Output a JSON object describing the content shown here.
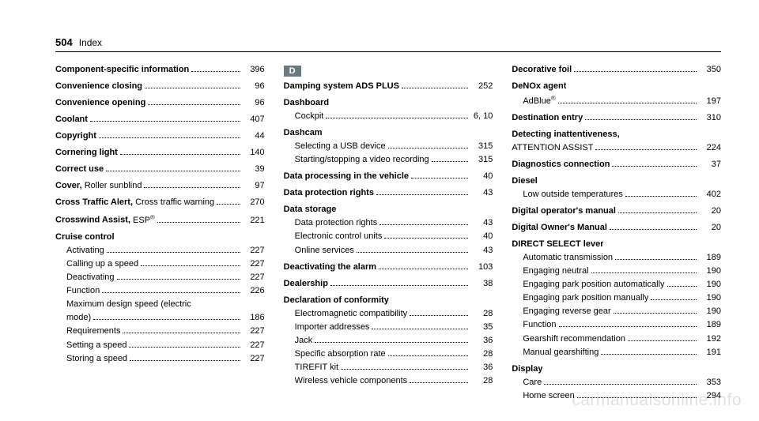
{
  "header": {
    "page_number": "504",
    "section": "Index"
  },
  "watermark": "carmanualsonline.info",
  "columns": {
    "left": [
      {
        "bold": "Component-specific information",
        "tail": "",
        "pg": "396"
      },
      {
        "spacer": true
      },
      {
        "bold": "Convenience closing",
        "tail": "",
        "pg": "96"
      },
      {
        "spacer": true
      },
      {
        "bold": "Convenience opening",
        "tail": "",
        "pg": "96"
      },
      {
        "spacer": true
      },
      {
        "bold": "Coolant",
        "tail": "",
        "pg": "407"
      },
      {
        "spacer": true
      },
      {
        "bold": "Copyright",
        "tail": "",
        "pg": "44"
      },
      {
        "spacer": true
      },
      {
        "bold": "Cornering light",
        "tail": "",
        "pg": "140"
      },
      {
        "spacer": true
      },
      {
        "bold": "Correct use",
        "tail": "",
        "pg": "39"
      },
      {
        "spacer": true
      },
      {
        "bold": "Cover,",
        "tail": " Roller sunblind",
        "pg": "97"
      },
      {
        "spacer": true
      },
      {
        "bold": "Cross Traffic Alert,",
        "tail": " Cross traffic warning",
        "pg": "270"
      },
      {
        "spacer": true
      },
      {
        "bold": "Crosswind Assist,",
        "tail": " ESP®",
        "pg": "221"
      },
      {
        "spacer": true
      },
      {
        "bold": "Cruise control",
        "heading": true
      },
      {
        "sub": true,
        "tail": "Activating",
        "pg": "227"
      },
      {
        "sub": true,
        "tail": "Calling up a speed",
        "pg": "227"
      },
      {
        "sub": true,
        "tail": "Deactivating",
        "pg": "227"
      },
      {
        "sub": true,
        "tail": "Function",
        "pg": "226"
      },
      {
        "sub": true,
        "tail": "Maximum design speed (electric",
        "cont": true
      },
      {
        "sub": true,
        "tail": "mode)",
        "pg": "186"
      },
      {
        "sub": true,
        "tail": "Requirements",
        "pg": "227"
      },
      {
        "sub": true,
        "tail": "Setting a speed",
        "pg": "227"
      },
      {
        "sub": true,
        "tail": "Storing a speed",
        "pg": "227"
      }
    ],
    "middle": [
      {
        "badge": "D"
      },
      {
        "bold": "Damping system ADS PLUS",
        "tail": "",
        "pg": "252"
      },
      {
        "spacer": true
      },
      {
        "bold": "Dashboard",
        "heading": true
      },
      {
        "sub": true,
        "tail": "Cockpit",
        "pg": "6, 10"
      },
      {
        "spacer": true
      },
      {
        "bold": "Dashcam",
        "heading": true
      },
      {
        "sub": true,
        "tail": "Selecting a USB device",
        "pg": "315"
      },
      {
        "sub": true,
        "tail": "Starting/stopping a video recording",
        "pg": "315"
      },
      {
        "spacer": true
      },
      {
        "bold": "Data processing in the vehicle",
        "tail": "",
        "pg": "40"
      },
      {
        "spacer": true
      },
      {
        "bold": "Data protection rights",
        "tail": "",
        "pg": "43"
      },
      {
        "spacer": true
      },
      {
        "bold": "Data storage",
        "heading": true
      },
      {
        "sub": true,
        "tail": "Data protection rights",
        "pg": "43"
      },
      {
        "sub": true,
        "tail": "Electronic control units",
        "pg": "40"
      },
      {
        "sub": true,
        "tail": "Online services",
        "pg": "43"
      },
      {
        "spacer": true
      },
      {
        "bold": "Deactivating the alarm",
        "tail": "",
        "pg": "103"
      },
      {
        "spacer": true
      },
      {
        "bold": "Dealership",
        "tail": "",
        "pg": "38"
      },
      {
        "spacer": true
      },
      {
        "bold": "Declaration of conformity",
        "heading": true
      },
      {
        "sub": true,
        "tail": "Electromagnetic compatibility",
        "pg": "28"
      },
      {
        "sub": true,
        "tail": "Importer addresses",
        "pg": "35"
      },
      {
        "sub": true,
        "tail": "Jack",
        "pg": "36"
      },
      {
        "sub": true,
        "tail": "Specific absorption rate",
        "pg": "28"
      },
      {
        "sub": true,
        "tail": "TIREFIT kit",
        "pg": "36"
      },
      {
        "sub": true,
        "tail": "Wireless vehicle components",
        "pg": "28"
      }
    ],
    "right": [
      {
        "bold": "Decorative foil",
        "tail": "",
        "pg": "350"
      },
      {
        "spacer": true
      },
      {
        "bold": "DeNOx agent",
        "heading": true
      },
      {
        "sub": true,
        "tail": "AdBlue®",
        "pg": "197"
      },
      {
        "spacer": true
      },
      {
        "bold": "Destination entry",
        "tail": "",
        "pg": "310"
      },
      {
        "spacer": true
      },
      {
        "bold": "Detecting inattentiveness,",
        "heading": true
      },
      {
        "tail": "ATTENTION ASSIST",
        "pg": "224"
      },
      {
        "spacer": true
      },
      {
        "bold": "Diagnostics connection",
        "tail": "",
        "pg": "37"
      },
      {
        "spacer": true
      },
      {
        "bold": "Diesel",
        "heading": true
      },
      {
        "sub": true,
        "tail": "Low outside temperatures",
        "pg": "402"
      },
      {
        "spacer": true
      },
      {
        "bold": "Digital operator's manual",
        "tail": "",
        "pg": "20"
      },
      {
        "spacer": true
      },
      {
        "bold": "Digital Owner's Manual",
        "tail": "",
        "pg": "20"
      },
      {
        "spacer": true
      },
      {
        "bold": "DIRECT SELECT lever",
        "heading": true
      },
      {
        "sub": true,
        "tail": "Automatic transmission",
        "pg": "189"
      },
      {
        "sub": true,
        "tail": "Engaging neutral",
        "pg": "190"
      },
      {
        "sub": true,
        "tail": "Engaging park position automatically",
        "pg": "190"
      },
      {
        "sub": true,
        "tail": "Engaging park position manually",
        "pg": "190"
      },
      {
        "sub": true,
        "tail": "Engaging reverse gear",
        "pg": "190"
      },
      {
        "sub": true,
        "tail": "Function",
        "pg": "189"
      },
      {
        "sub": true,
        "tail": "Gearshift recommendation",
        "pg": "192"
      },
      {
        "sub": true,
        "tail": "Manual gearshifting",
        "pg": "191"
      },
      {
        "spacer": true
      },
      {
        "bold": "Display",
        "heading": true
      },
      {
        "sub": true,
        "tail": "Care",
        "pg": "353"
      },
      {
        "sub": true,
        "tail": "Home screen",
        "pg": "294"
      }
    ]
  }
}
